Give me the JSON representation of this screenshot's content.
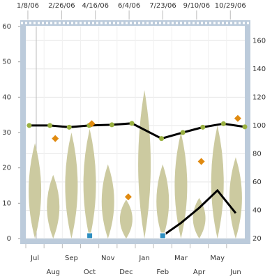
{
  "chart_data": {
    "type": "combo",
    "categories": [
      "Jul",
      "Aug",
      "Sep",
      "Oct",
      "Nov",
      "Dec",
      "Jan",
      "Feb",
      "Mar",
      "Apr",
      "May",
      "Jun"
    ],
    "xlim": [
      -3,
      315
    ],
    "xticks": [
      {
        "value": 0,
        "label": "1/8/06"
      },
      {
        "value": 49,
        "label": "2/26/06"
      },
      {
        "value": 98,
        "label": "4/16/06"
      },
      {
        "value": 147,
        "label": "6/4/06"
      },
      {
        "value": 196,
        "label": "7/23/06"
      },
      {
        "value": 245,
        "label": "9/10/06"
      },
      {
        "value": 294,
        "label": "10/29/06"
      }
    ],
    "ylim": [
      0,
      60
    ],
    "yticks": [
      0,
      10,
      20,
      30,
      40,
      50,
      60
    ],
    "y2lim": [
      20,
      170
    ],
    "y2ticks": [
      20,
      40,
      60,
      80,
      100,
      120,
      140,
      160
    ],
    "grid": true,
    "series": [
      {
        "type": "range",
        "color": "#cccaa0",
        "low": [
          0,
          0,
          0,
          0,
          0,
          0,
          0,
          0,
          0,
          0,
          0,
          0
        ],
        "high": [
          27,
          18,
          30,
          31,
          21,
          11,
          42,
          21,
          30,
          11.5,
          32,
          23
        ]
      },
      {
        "type": "date-line",
        "color": "#000000",
        "marker_color": "#99b040",
        "x": [
          2,
          32,
          60,
          89,
          122,
          151,
          194,
          225,
          254,
          284,
          315
        ],
        "values": [
          32,
          32,
          31.5,
          32,
          32.2,
          32.6,
          28.3,
          30,
          31.5,
          32.5,
          31.6
        ]
      },
      {
        "type": "scatter",
        "color": "#e08a10",
        "values": [
          null,
          28.3,
          null,
          32.5,
          null,
          11.8,
          null,
          null,
          null,
          21.8,
          null,
          34
        ]
      },
      {
        "type": "line",
        "axis": "y2",
        "color": "#000000",
        "values": [
          null,
          null,
          null,
          null,
          null,
          null,
          null,
          22,
          31,
          41.7,
          54,
          38
        ]
      },
      {
        "type": "square",
        "axis": "y2",
        "color": "#2e8fc0",
        "values": [
          null,
          null,
          null,
          22,
          null,
          null,
          null,
          22,
          null,
          null,
          null,
          null
        ]
      }
    ]
  }
}
